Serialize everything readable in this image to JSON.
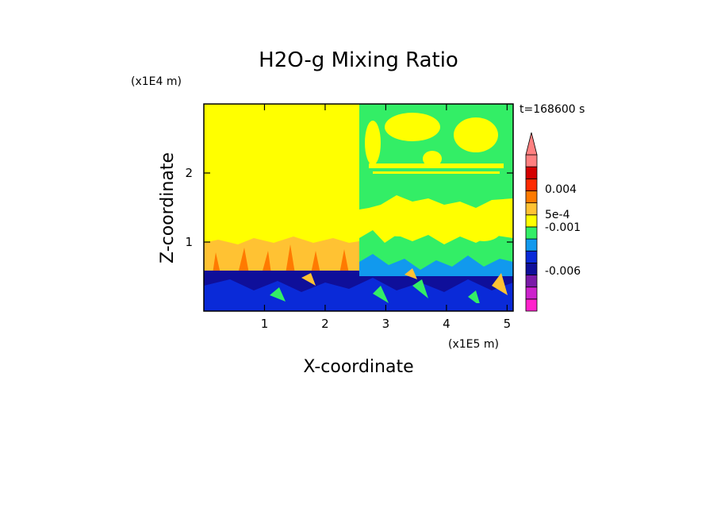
{
  "chart_data": {
    "type": "heatmap",
    "title": "H2O-g Mixing Ratio",
    "xlabel": "X-coordinate",
    "ylabel": "Z-coordinate",
    "x_unit": "(x1E5 m)",
    "y_unit": "(x1E4 m)",
    "time_label": "t=168600 s",
    "xlim": [
      0,
      5.1
    ],
    "ylim": [
      0,
      3.0
    ],
    "x_ticks": [
      {
        "value": 1,
        "label": "1"
      },
      {
        "value": 2,
        "label": "2"
      },
      {
        "value": 3,
        "label": "3"
      },
      {
        "value": 4,
        "label": "4"
      },
      {
        "value": 5,
        "label": "5"
      }
    ],
    "y_ticks": [
      {
        "value": 1,
        "label": "1"
      },
      {
        "value": 2,
        "label": "2"
      }
    ],
    "colorbar": {
      "colors": [
        "#ff22cc",
        "#cc22cc",
        "#7a1aa8",
        "#0f0f9a",
        "#0a2ad8",
        "#1199ee",
        "#33ee66",
        "#ffff00",
        "#ffc233",
        "#ff7a00",
        "#ff2a00",
        "#d40000",
        "#ff8080"
      ],
      "labels": [
        "0.004",
        "5e-4",
        "-0.001",
        "-0.006"
      ],
      "extend": "max"
    },
    "regions": [
      {
        "name": "upper-left",
        "value_color": "#ffff00"
      },
      {
        "name": "upper-right",
        "value_color": "#33ee66"
      },
      {
        "name": "lower-layer",
        "value_color": "#0f0f9a"
      },
      {
        "name": "interface-band",
        "value_color": "#ffc233"
      }
    ],
    "grid": false,
    "legend": "colorbar-right"
  }
}
